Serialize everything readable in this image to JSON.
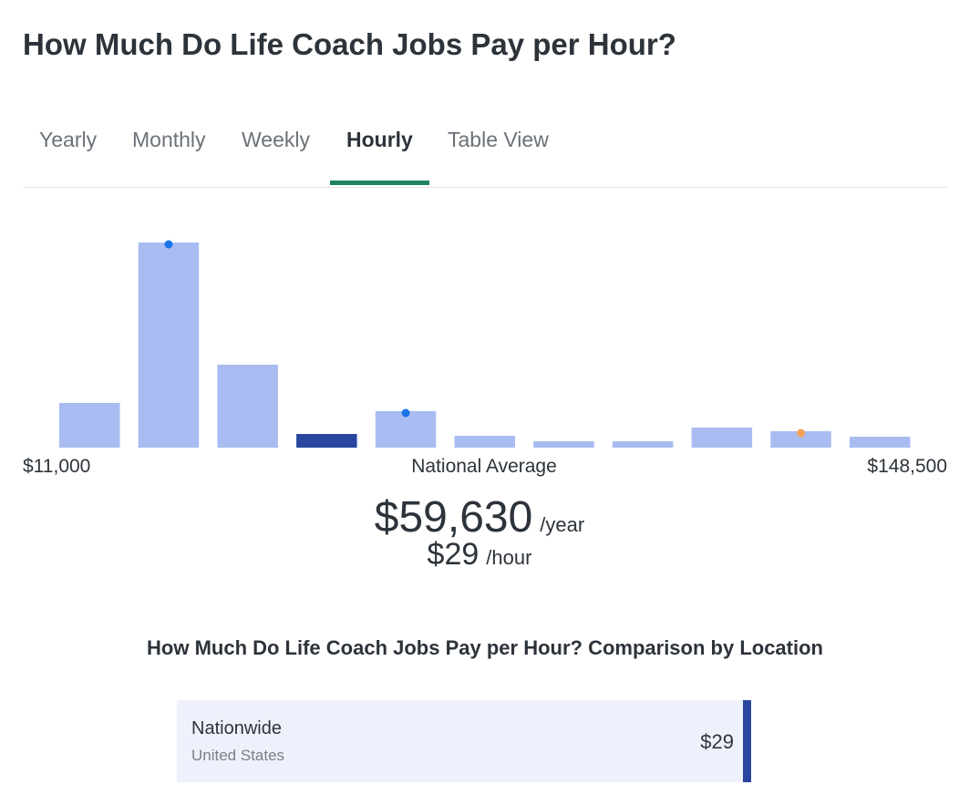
{
  "header": {
    "title": "How Much Do Life Coach Jobs Pay per Hour?"
  },
  "tabs": {
    "items": [
      "Yearly",
      "Monthly",
      "Weekly",
      "Hourly",
      "Table View"
    ],
    "active": 3
  },
  "chart_data": {
    "type": "bar",
    "values": [
      49,
      225,
      91,
      15,
      40,
      13,
      7,
      7,
      22,
      18,
      12
    ],
    "color": "#a9bcf2",
    "highlight": 3,
    "highlight_color": "#2a47a0",
    "markers": [
      {
        "index": 1,
        "color": "#1a73e8"
      },
      {
        "index": 4,
        "color": "#1a73e8"
      },
      {
        "index": 9,
        "color": "#f4a259"
      }
    ]
  },
  "range": {
    "min_label": "$11,000",
    "center_label": "National Average",
    "max_label": "$148,500"
  },
  "average": {
    "yearly": "$59,630",
    "yearly_unit": "/year",
    "hourly": "$29",
    "hourly_unit": "/hour"
  },
  "comparison": {
    "title": "How Much Do Life Coach Jobs Pay per Hour? Comparison by Location",
    "rows": [
      {
        "name": "Nationwide",
        "location": "United States",
        "value": "$29"
      }
    ]
  }
}
